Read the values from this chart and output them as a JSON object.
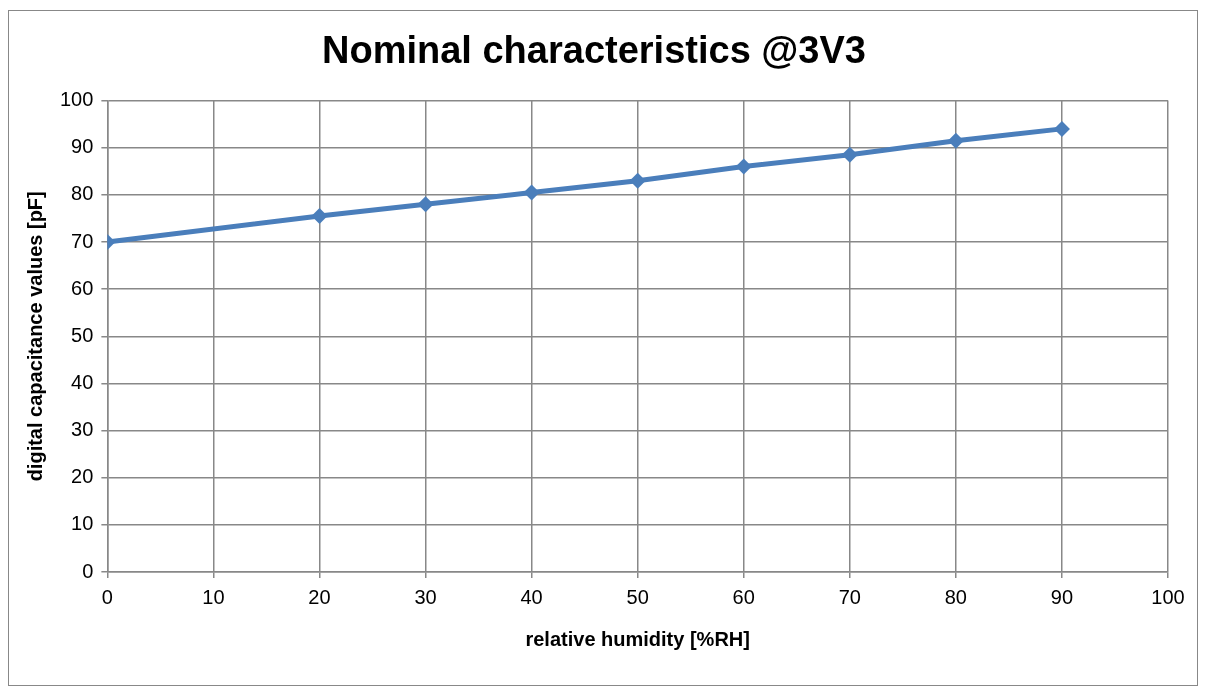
{
  "chart_data": {
    "type": "line",
    "title": "Nominal characteristics @3V3",
    "xlabel": "relative humidity [%RH]",
    "ylabel": "digital capacitance values [pF]",
    "x": [
      0,
      20,
      30,
      40,
      50,
      60,
      70,
      80,
      90
    ],
    "series": [
      {
        "color": "#4a7ebb",
        "values": [
          70,
          75.5,
          78,
          80.5,
          83,
          86,
          88.5,
          91.5,
          94
        ]
      }
    ],
    "xlim": [
      0,
      100
    ],
    "xticks": [
      0,
      10,
      20,
      30,
      40,
      50,
      60,
      70,
      80,
      90,
      100
    ],
    "ylim": [
      0,
      100
    ],
    "yticks": [
      0,
      10,
      20,
      30,
      40,
      50,
      60,
      70,
      80,
      90,
      100
    ],
    "grid": true,
    "legend": false,
    "marker": "diamond",
    "line_style": "solid"
  }
}
